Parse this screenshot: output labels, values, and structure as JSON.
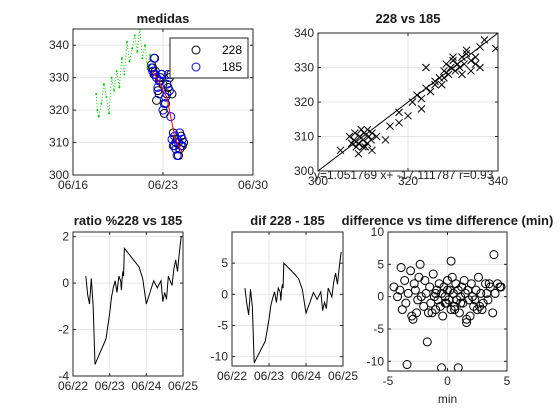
{
  "figure": {
    "background": "#ffffff"
  },
  "chart_data": [
    {
      "id": "measures",
      "type": "scatter",
      "title": "medidas",
      "xlabel": "",
      "ylabel": "",
      "x_ticks": [
        "06/16",
        "06/23",
        "06/30"
      ],
      "x_tick_values": [
        0,
        7,
        14
      ],
      "xlim": [
        0,
        14
      ],
      "ylim": [
        300,
        345
      ],
      "y_ticks": [
        300,
        310,
        320,
        330,
        340
      ],
      "grid": true,
      "legend": {
        "position": "top-right",
        "entries": [
          "228",
          "185"
        ]
      },
      "colors": {
        "s228": "#000000",
        "s185": "#0000ff",
        "green": "#00cc00",
        "red": "#ff0000"
      },
      "series": [
        {
          "name": "228",
          "marker": "circle",
          "color": "#000000",
          "x": [
            6.1,
            6.2,
            6.3,
            6.35,
            6.4,
            6.5,
            6.6,
            6.7,
            6.8,
            6.9,
            7.0,
            7.1,
            7.2,
            7.3,
            7.4,
            7.5,
            7.6,
            7.7,
            7.8,
            7.9,
            8.0,
            8.1,
            8.2,
            8.3,
            8.4,
            8.5,
            8.6
          ],
          "y": [
            334,
            333,
            331,
            336,
            332,
            323,
            326,
            329,
            330,
            331,
            328,
            319,
            322,
            325,
            327,
            330,
            331,
            325,
            313,
            309,
            310,
            311,
            306,
            308,
            312,
            309,
            310
          ]
        },
        {
          "name": "185",
          "marker": "circle",
          "color": "#0000ff",
          "x": [
            6.1,
            6.2,
            6.3,
            6.4,
            6.5,
            6.6,
            6.7,
            6.8,
            6.9,
            7.0,
            7.1,
            7.2,
            7.3,
            7.4,
            7.5,
            7.6,
            7.7,
            7.8,
            7.9,
            8.0,
            8.1,
            8.2,
            8.3,
            8.4,
            8.5
          ],
          "y": [
            333,
            332,
            336,
            331,
            330,
            327,
            325,
            329,
            331,
            320,
            322,
            324,
            328,
            331,
            326,
            318,
            311,
            309,
            312,
            308,
            306,
            310,
            313,
            309,
            311
          ]
        },
        {
          "marker": "dot",
          "color": "#00cc00",
          "x": [
            1.8,
            1.9,
            2.0,
            2.2,
            2.4,
            2.6,
            2.8,
            3.0,
            3.2,
            3.4,
            3.6,
            3.8,
            4.0,
            4.2,
            4.4,
            4.6,
            4.8,
            5.0,
            5.2,
            5.4,
            5.6,
            5.8,
            6.0
          ],
          "y": [
            325,
            320,
            318,
            322,
            328,
            324,
            319,
            330,
            326,
            332,
            327,
            336,
            331,
            341,
            335,
            339,
            343,
            338,
            345,
            336,
            340,
            333,
            337
          ]
        },
        {
          "marker": "line",
          "color": "#ff0000",
          "x": [
            6.2,
            6.5,
            6.8,
            7.0,
            7.3,
            7.6,
            7.9,
            8.2,
            8.5
          ],
          "y": [
            332,
            330,
            328,
            326,
            324,
            318,
            312,
            309,
            307
          ]
        }
      ]
    },
    {
      "id": "correlation",
      "type": "scatter",
      "title": "228 vs 185",
      "xlabel": "",
      "ylabel": "",
      "xlim": [
        300,
        340
      ],
      "ylim": [
        300,
        340
      ],
      "x_ticks": [
        300,
        320,
        340
      ],
      "y_ticks": [
        300,
        310,
        320,
        330,
        340
      ],
      "grid": true,
      "marker": "x",
      "annotation": "y=1.051769 x+ -17.111787 r=0.93",
      "fit_line": {
        "slope": 1,
        "intercept": 0
      },
      "x": [
        305,
        307,
        307.5,
        308,
        308.2,
        308.5,
        309,
        309.3,
        309.6,
        310,
        310.2,
        310.5,
        311,
        311.3,
        311.8,
        312,
        313,
        315,
        316,
        318,
        320,
        321,
        322,
        323,
        324,
        325,
        326,
        327,
        327.5,
        328,
        328.5,
        329,
        329.5,
        330,
        330.5,
        331,
        331.5,
        332,
        332.5,
        333,
        334,
        335,
        336,
        337,
        339.5,
        310,
        309,
        311,
        312,
        324,
        326,
        328,
        330,
        332,
        333,
        334,
        335,
        336,
        318,
        323
      ],
      "y": [
        306,
        310,
        308,
        309,
        311,
        307,
        308,
        310,
        312,
        309,
        311,
        307,
        308,
        310,
        309,
        311,
        310,
        309,
        313,
        314,
        316,
        320,
        322,
        321,
        324,
        323,
        326,
        327,
        325,
        329,
        331,
        328,
        330,
        332,
        329,
        331,
        330,
        333,
        331,
        334,
        332,
        333,
        336,
        338,
        335.5,
        307,
        305,
        312,
        306,
        330,
        325,
        327,
        333,
        328,
        335,
        329,
        331,
        330,
        317,
        318
      ]
    },
    {
      "id": "ratio",
      "type": "line",
      "title": "ratio %228 vs 185",
      "xlabel": "",
      "ylabel": "",
      "x_ticks": [
        "06/22",
        "06/23",
        "06/24",
        "06/25"
      ],
      "x_tick_values": [
        0,
        1,
        2,
        3
      ],
      "xlim": [
        0,
        3
      ],
      "ylim": [
        -4,
        2.2
      ],
      "y_ticks": [
        -4,
        -2,
        0,
        2
      ],
      "grid": true,
      "x": [
        0.35,
        0.4,
        0.45,
        0.5,
        0.55,
        0.6,
        0.9,
        1.0,
        1.05,
        1.1,
        1.15,
        1.2,
        1.25,
        1.3,
        1.32,
        1.34,
        1.36,
        1.38,
        1.4,
        1.5,
        1.6,
        1.7,
        1.8,
        1.9,
        2.0,
        2.1,
        2.2,
        2.3,
        2.4,
        2.45,
        2.5,
        2.55,
        2.6,
        2.7,
        2.75,
        2.8,
        2.85,
        2.9,
        2.95
      ],
      "y": [
        0.3,
        -0.5,
        -0.9,
        0.2,
        -1.0,
        -3.5,
        -2.4,
        -1.3,
        -0.6,
        -0.2,
        0.1,
        -0.4,
        0.3,
        0.1,
        -0.3,
        0.2,
        0.5,
        0.3,
        1.5,
        1.3,
        1.1,
        0.9,
        0.7,
        0.2,
        -0.9,
        -0.4,
        0.1,
        -0.2,
        0.1,
        -0.8,
        -0.4,
        -0.7,
        0.3,
        -0.1,
        0.6,
        1.0,
        0.5,
        1.3,
        2.0
      ]
    },
    {
      "id": "difference",
      "type": "line",
      "title": "dif 228 - 185",
      "xlabel": "",
      "ylabel": "",
      "x_ticks": [
        "06/22",
        "06/23",
        "06/24",
        "06/25"
      ],
      "x_tick_values": [
        0,
        1,
        2,
        3
      ],
      "xlim": [
        0,
        3
      ],
      "ylim": [
        -11.5,
        10
      ],
      "y_ticks": [
        -10,
        -5,
        0,
        5
      ],
      "grid": true,
      "x": [
        0.35,
        0.4,
        0.45,
        0.5,
        0.55,
        0.6,
        0.9,
        1.0,
        1.05,
        1.1,
        1.15,
        1.2,
        1.25,
        1.3,
        1.32,
        1.34,
        1.36,
        1.38,
        1.4,
        1.5,
        1.6,
        1.7,
        1.8,
        1.9,
        2.0,
        2.1,
        2.2,
        2.3,
        2.4,
        2.45,
        2.5,
        2.55,
        2.6,
        2.7,
        2.75,
        2.8,
        2.85,
        2.9,
        2.95
      ],
      "y": [
        1.0,
        -1.5,
        -3.3,
        0.8,
        -2.0,
        -11.0,
        -7.5,
        -4.0,
        -1.8,
        -0.6,
        0.4,
        -1.3,
        1.0,
        0.4,
        -1.0,
        0.6,
        1.6,
        1.0,
        5.0,
        4.4,
        3.8,
        3.2,
        2.5,
        0.8,
        -3.0,
        -1.4,
        0.3,
        -0.8,
        0.4,
        -2.6,
        -1.3,
        -2.3,
        1.0,
        -0.4,
        2.0,
        3.4,
        1.6,
        4.4,
        6.8
      ]
    },
    {
      "id": "diff-vs-time",
      "type": "scatter",
      "title": "difference vs time difference (min)",
      "xlabel": "min",
      "ylabel": "",
      "xlim": [
        -5,
        5
      ],
      "ylim": [
        -11.5,
        10
      ],
      "x_ticks": [
        -5,
        0,
        5
      ],
      "y_ticks": [
        -10,
        -5,
        0,
        5,
        10
      ],
      "grid": true,
      "marker": "circle",
      "x": [
        -4.5,
        -4.2,
        -4.0,
        -3.8,
        -3.6,
        -3.5,
        -3.3,
        -3.1,
        -3.0,
        -2.8,
        -2.7,
        -2.5,
        -2.4,
        -2.2,
        -2.0,
        -1.9,
        -1.8,
        -1.6,
        -1.5,
        -1.4,
        -1.2,
        -1.1,
        -1.0,
        -0.9,
        -0.8,
        -0.7,
        -0.6,
        -0.5,
        -0.4,
        -0.3,
        -0.2,
        -0.1,
        0.0,
        0.1,
        0.2,
        0.3,
        0.4,
        0.5,
        0.6,
        0.7,
        0.8,
        0.9,
        1.0,
        1.1,
        1.2,
        1.3,
        1.4,
        1.5,
        1.6,
        1.7,
        1.8,
        2.0,
        2.1,
        2.2,
        2.4,
        2.5,
        2.6,
        2.8,
        3.0,
        3.2,
        3.4,
        3.6,
        3.8,
        4.0,
        4.2,
        4.5,
        -2.9,
        -3.4,
        -1.7,
        -0.5,
        0.9,
        1.9,
        2.7,
        3.9,
        -3.9,
        -2.3,
        -1.3,
        0.3,
        1.1,
        2.3,
        3.3,
        4.4,
        -0.2,
        0.6,
        1.6,
        -1.0,
        -2.6,
        0.0,
        3.5,
        2.9
      ],
      "y": [
        1.5,
        0.0,
        1.0,
        -2.0,
        2.5,
        -1.0,
        0.5,
        4.0,
        -3.0,
        2.0,
        1.0,
        -0.5,
        3.0,
        0.0,
        -1.5,
        2.5,
        0.5,
        -2.5,
        1.5,
        -1.0,
        3.5,
        0.0,
        -2.0,
        1.0,
        -0.5,
        2.0,
        -1.5,
        0.5,
        -3.0,
        1.5,
        0.0,
        -1.0,
        2.5,
        -0.5,
        1.0,
        -2.0,
        3.0,
        0.5,
        -1.5,
        2.0,
        -0.5,
        1.0,
        -2.5,
        0.0,
        1.5,
        -1.0,
        2.5,
        0.5,
        -3.5,
        1.0,
        -0.5,
        2.0,
        0.0,
        -1.5,
        1.0,
        -2.0,
        3.0,
        0.5,
        -1.0,
        2.0,
        -0.5,
        1.5,
        -2.5,
        0.5,
        2.0,
        1.5,
        -3.5,
        -10.5,
        -7.0,
        -11.0,
        -11.0,
        -3.0,
        -1.5,
        6.5,
        4.5,
        5.0,
        -2.5,
        5.5,
        -1.0,
        -0.5,
        0.5,
        1.5,
        -1.0,
        -2.0,
        -4.0,
        0.5,
        -2.5,
        1.0,
        2.0,
        -2.0
      ]
    }
  ]
}
